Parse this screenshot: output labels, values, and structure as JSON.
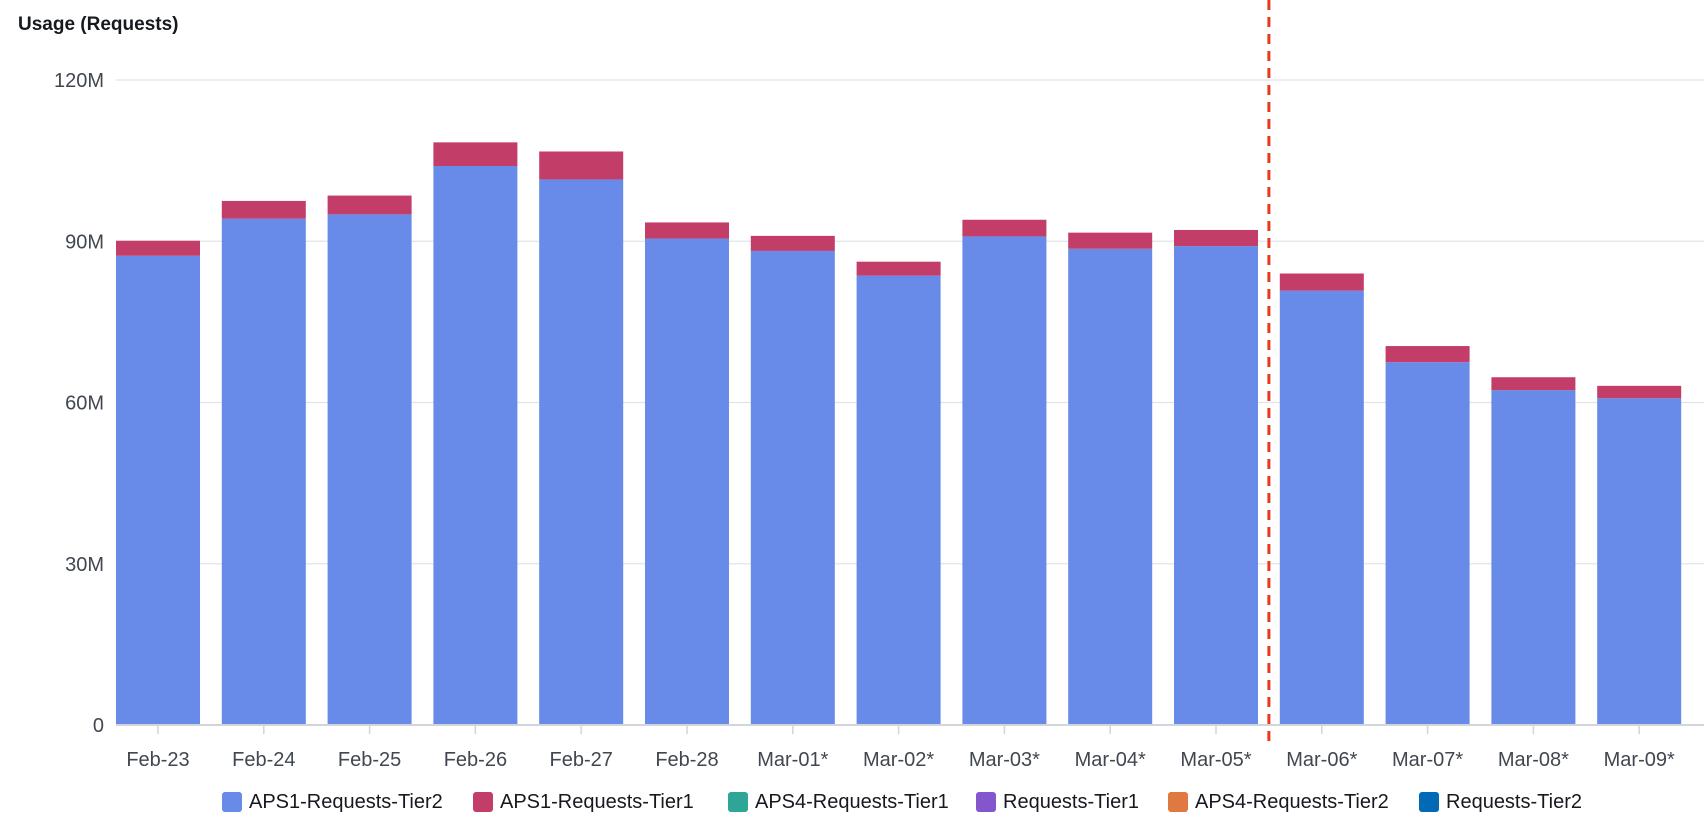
{
  "chart_data": {
    "type": "bar",
    "stacked": true,
    "title": "Usage (Requests)",
    "xlabel": "",
    "ylabel": "",
    "ylim": [
      0,
      120
    ],
    "y_ticks": [
      "0",
      "30M",
      "60M",
      "90M",
      "120M"
    ],
    "y_tick_values": [
      0,
      30,
      60,
      90,
      120
    ],
    "unit": "M",
    "categories": [
      "Feb-23",
      "Feb-24",
      "Feb-25",
      "Feb-26",
      "Feb-27",
      "Feb-28",
      "Mar-01*",
      "Mar-02*",
      "Mar-03*",
      "Mar-04*",
      "Mar-05*",
      "Mar-06*",
      "Mar-07*",
      "Mar-08*",
      "Mar-09*"
    ],
    "forecast_divider_after": "Mar-05*",
    "grid": true,
    "legend_position": "bottom",
    "series": [
      {
        "name": "APS1-Requests-Tier2",
        "color": "#688ae8",
        "values": [
          87.3,
          94.2,
          95.0,
          104.0,
          101.5,
          90.5,
          88.2,
          83.6,
          90.9,
          88.6,
          89.1,
          80.8,
          67.5,
          62.3,
          60.8
        ]
      },
      {
        "name": "APS1-Requests-Tier1",
        "color": "#c33d69",
        "values": [
          2.8,
          3.3,
          3.5,
          4.4,
          5.2,
          3.0,
          2.8,
          2.6,
          3.1,
          3.0,
          3.0,
          3.2,
          3.0,
          2.4,
          2.3
        ]
      },
      {
        "name": "APS4-Requests-Tier1",
        "color": "#2ea597",
        "values": [
          0,
          0,
          0,
          0,
          0,
          0,
          0,
          0,
          0,
          0,
          0,
          0,
          0,
          0,
          0
        ]
      },
      {
        "name": "Requests-Tier1",
        "color": "#8456ce",
        "values": [
          0,
          0,
          0,
          0,
          0,
          0,
          0,
          0,
          0,
          0,
          0,
          0,
          0,
          0,
          0
        ]
      },
      {
        "name": "APS4-Requests-Tier2",
        "color": "#e07941",
        "values": [
          0,
          0,
          0,
          0,
          0,
          0,
          0,
          0,
          0,
          0,
          0,
          0,
          0,
          0,
          0
        ]
      },
      {
        "name": "Requests-Tier2",
        "color": "#016ab5",
        "values": [
          0,
          0,
          0,
          0,
          0,
          0,
          0,
          0,
          0,
          0,
          0,
          0,
          0,
          0,
          0
        ]
      }
    ],
    "colors": {
      "grid": "#e1e4e6",
      "axis": "#d1d5db",
      "divider": "#e8391f"
    }
  }
}
